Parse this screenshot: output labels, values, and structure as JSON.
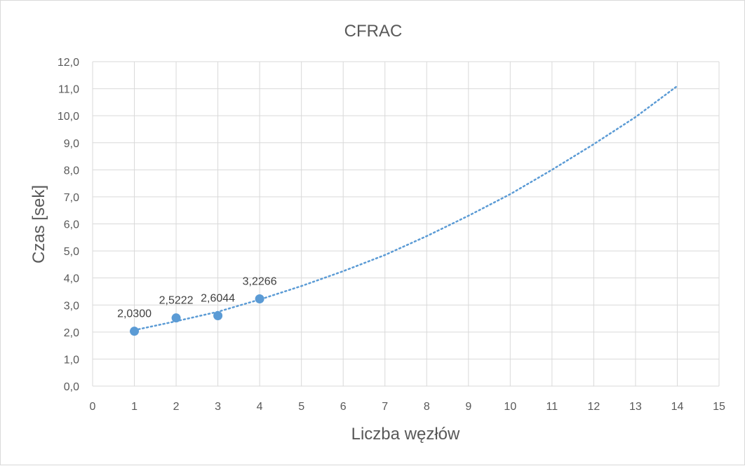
{
  "chart_data": {
    "type": "scatter",
    "title": "CFRAC",
    "xlabel": "Liczba węzłów",
    "ylabel": "Czas [sek]",
    "xlim": [
      0,
      15
    ],
    "ylim": [
      0,
      12
    ],
    "x_ticks": [
      "0",
      "1",
      "2",
      "3",
      "4",
      "5",
      "6",
      "7",
      "8",
      "9",
      "10",
      "11",
      "12",
      "13",
      "14",
      "15"
    ],
    "y_ticks": [
      "0,0",
      "1,0",
      "2,0",
      "3,0",
      "4,0",
      "5,0",
      "6,0",
      "7,0",
      "8,0",
      "9,0",
      "10,0",
      "11,0",
      "12,0"
    ],
    "grid": true,
    "legend": "none",
    "series": [
      {
        "x": [
          1,
          2,
          3,
          4
        ],
        "y": [
          2.03,
          2.5222,
          2.6044,
          3.2266
        ],
        "labels": [
          "2,0300",
          "2,5222",
          "2,6044",
          "3,2266"
        ],
        "color": "#5b9bd5"
      }
    ],
    "trendline": {
      "style": "dotted",
      "type": "polynomial",
      "color": "#5b9bd5",
      "x": [
        1,
        2,
        3,
        4,
        5,
        6,
        7,
        8,
        9,
        10,
        11,
        12,
        13,
        14
      ],
      "y": [
        2.07,
        2.4,
        2.75,
        3.2,
        3.7,
        4.25,
        4.85,
        5.55,
        6.3,
        7.1,
        8.0,
        8.95,
        9.95,
        11.1
      ]
    }
  }
}
